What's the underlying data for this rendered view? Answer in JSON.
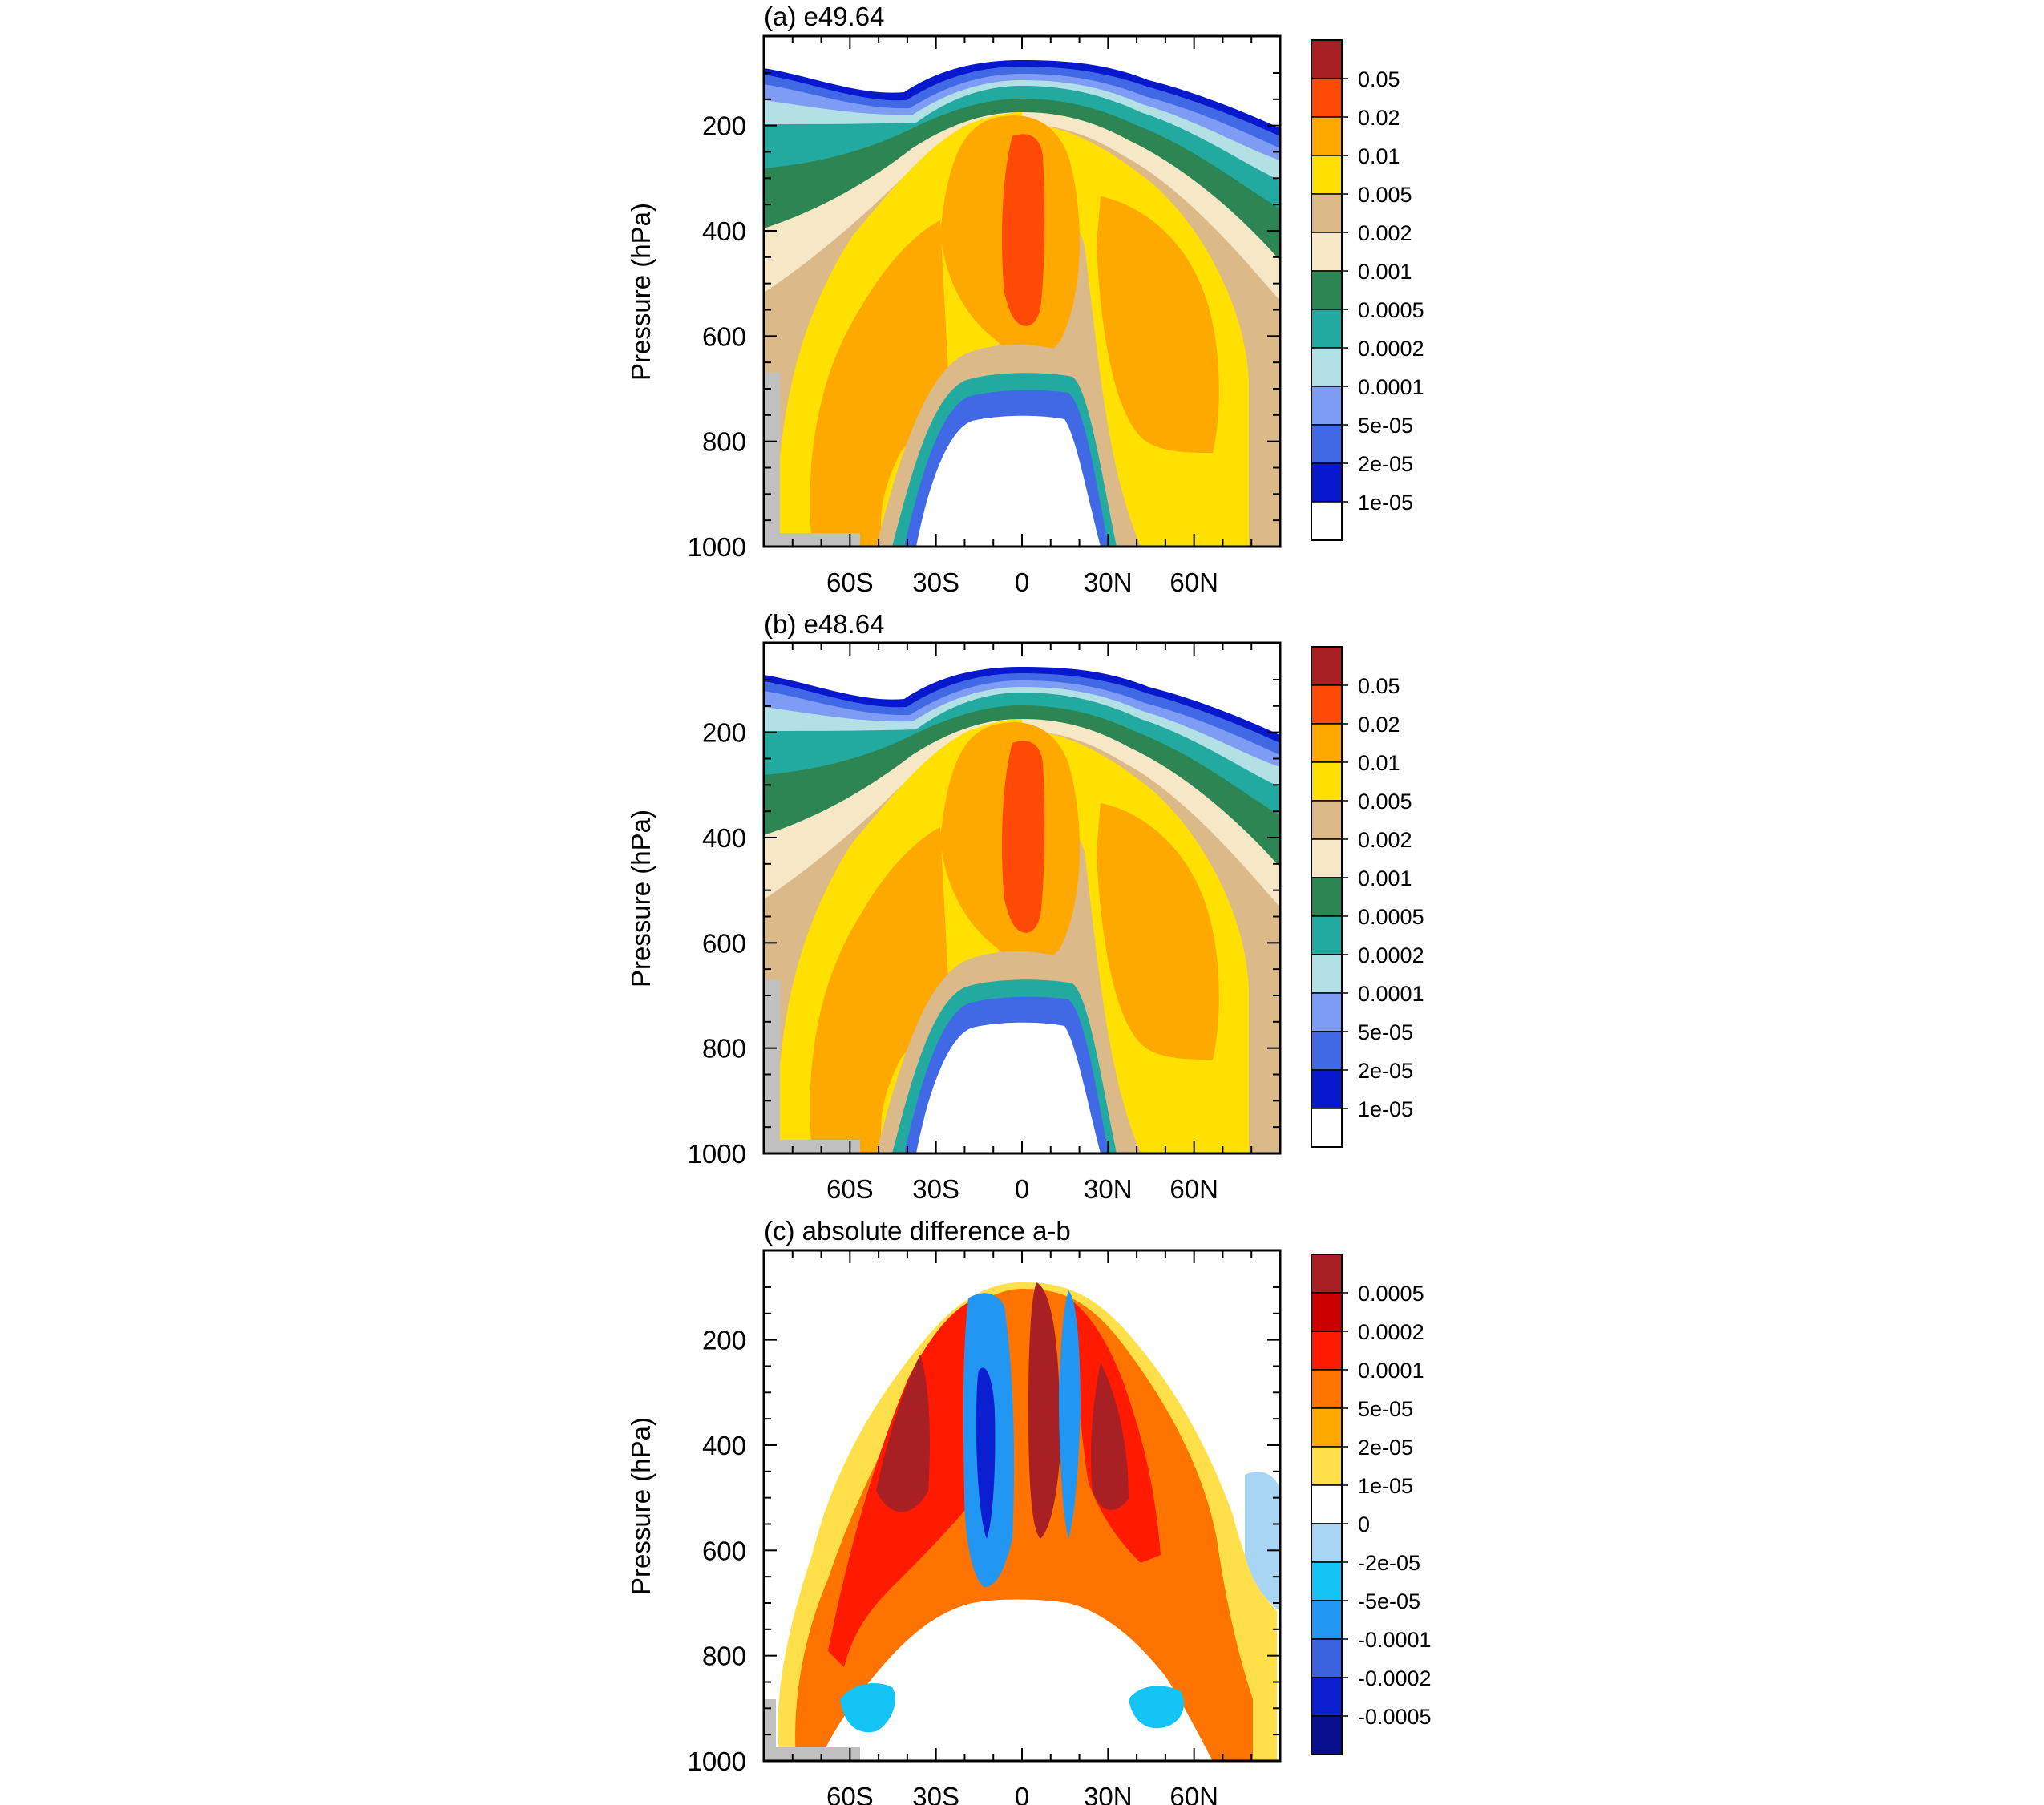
{
  "figure": {
    "ylabel": "Pressure (hPa)",
    "y_ticks": [
      "200",
      "400",
      "600",
      "800",
      "1000"
    ],
    "x_ticks": [
      "60S",
      "30S",
      "0",
      "30N",
      "60N"
    ]
  },
  "chart_data": [
    {
      "type": "heatmap",
      "title": "(a) e49.64",
      "xlabel": "",
      "ylabel": "Pressure (hPa)",
      "xlim": [
        -90,
        90
      ],
      "ylim": [
        1000,
        30
      ],
      "x_tick_values": [
        -60,
        -30,
        0,
        30,
        60
      ],
      "x_tick_labels": [
        "60S",
        "30S",
        "0",
        "30N",
        "60N"
      ],
      "y_tick_values": [
        200,
        400,
        600,
        800,
        1000
      ],
      "y_tick_labels": [
        "200",
        "400",
        "600",
        "800",
        "1000"
      ],
      "colorbar_labels": [
        "0.05",
        "0.02",
        "0.01",
        "0.005",
        "0.002",
        "0.001",
        "0.0005",
        "0.0002",
        "0.0001",
        "5e-05",
        "2e-05",
        "1e-05"
      ],
      "colorbar_colors": [
        "#a81f24",
        "#ff4a06",
        "#ffa800",
        "#ffe000",
        "#dcb989",
        "#f6e7c7",
        "#2c8552",
        "#22aaa1",
        "#b3e0e4",
        "#7f9cf4",
        "#4169e6",
        "#0818cc",
        "#ffffff"
      ]
    },
    {
      "type": "heatmap",
      "title": "(b) e48.64",
      "xlabel": "",
      "ylabel": "Pressure (hPa)",
      "xlim": [
        -90,
        90
      ],
      "ylim": [
        1000,
        30
      ],
      "x_tick_values": [
        -60,
        -30,
        0,
        30,
        60
      ],
      "x_tick_labels": [
        "60S",
        "30S",
        "0",
        "30N",
        "60N"
      ],
      "y_tick_values": [
        200,
        400,
        600,
        800,
        1000
      ],
      "y_tick_labels": [
        "200",
        "400",
        "600",
        "800",
        "1000"
      ],
      "colorbar_labels": [
        "0.05",
        "0.02",
        "0.01",
        "0.005",
        "0.002",
        "0.001",
        "0.0005",
        "0.0002",
        "0.0001",
        "5e-05",
        "2e-05",
        "1e-05"
      ],
      "colorbar_colors": [
        "#a81f24",
        "#ff4a06",
        "#ffa800",
        "#ffe000",
        "#dcb989",
        "#f6e7c7",
        "#2c8552",
        "#22aaa1",
        "#b3e0e4",
        "#7f9cf4",
        "#4169e6",
        "#0818cc",
        "#ffffff"
      ]
    },
    {
      "type": "heatmap",
      "title": "(c) absolute difference a-b",
      "xlabel": "",
      "ylabel": "Pressure (hPa)",
      "xlim": [
        -90,
        90
      ],
      "ylim": [
        1000,
        30
      ],
      "x_tick_values": [
        -60,
        -30,
        0,
        30,
        60
      ],
      "x_tick_labels": [
        "60S",
        "30S",
        "0",
        "30N",
        "60N"
      ],
      "y_tick_values": [
        200,
        400,
        600,
        800,
        1000
      ],
      "y_tick_labels": [
        "200",
        "400",
        "600",
        "800",
        "1000"
      ],
      "colorbar_labels": [
        "0.0005",
        "0.0002",
        "0.0001",
        "5e-05",
        "2e-05",
        "1e-05",
        "0",
        "-2e-05",
        "-5e-05",
        "-0.0001",
        "-0.0002",
        "-0.0005"
      ],
      "colorbar_colors": [
        "#a81f24",
        "#cc0000",
        "#ff1a00",
        "#ff7300",
        "#ffa800",
        "#ffe04a",
        "#ffffff",
        "#a9d5f5",
        "#13c4f5",
        "#2196f3",
        "#3b63e0",
        "#0b1fd1",
        "#070f8c"
      ]
    }
  ]
}
